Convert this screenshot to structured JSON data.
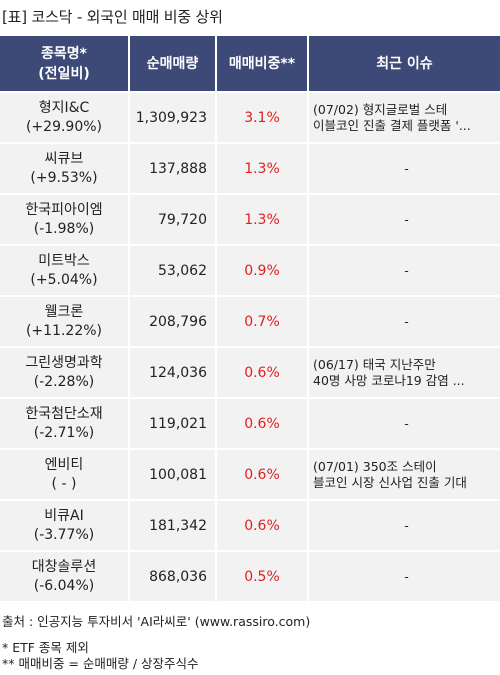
{
  "title": "[표] 코스닥 - 외국인 매매 비중 상위",
  "headers": {
    "name_line1": "종목명*",
    "name_line2": "(전일비)",
    "net": "순매매량",
    "ratio": "매매비중**",
    "issue": "최근 이슈"
  },
  "rows": [
    {
      "name": "형지I&C",
      "change": "(+29.90%)",
      "net": "1,309,923",
      "ratio": "3.1%",
      "issue1": "(07/02) 형지글로벌 스테",
      "issue2": "이블코인 진출 결제 플랫폼 '..."
    },
    {
      "name": "씨큐브",
      "change": "(+9.53%)",
      "net": "137,888",
      "ratio": "1.3%",
      "issue1": "-",
      "issue2": ""
    },
    {
      "name": "한국피아이엠",
      "change": "(-1.98%)",
      "net": "79,720",
      "ratio": "1.3%",
      "issue1": "-",
      "issue2": ""
    },
    {
      "name": "미트박스",
      "change": "(+5.04%)",
      "net": "53,062",
      "ratio": "0.9%",
      "issue1": "-",
      "issue2": ""
    },
    {
      "name": "웰크론",
      "change": "(+11.22%)",
      "net": "208,796",
      "ratio": "0.7%",
      "issue1": "-",
      "issue2": ""
    },
    {
      "name": "그린생명과학",
      "change": "(-2.28%)",
      "net": "124,036",
      "ratio": "0.6%",
      "issue1": "(06/17) 태국 지난주만",
      "issue2": "40명 사망 코로나19 감염 ..."
    },
    {
      "name": "한국첨단소재",
      "change": "(-2.71%)",
      "net": "119,021",
      "ratio": "0.6%",
      "issue1": "-",
      "issue2": ""
    },
    {
      "name": "엔비티",
      "change": "( - )",
      "net": "100,081",
      "ratio": "0.6%",
      "issue1": "(07/01) 350조 스테이",
      "issue2": "블코인 시장 신사업 진출 기대"
    },
    {
      "name": "비큐AI",
      "change": "(-3.77%)",
      "net": "181,342",
      "ratio": "0.6%",
      "issue1": "-",
      "issue2": ""
    },
    {
      "name": "대창솔루션",
      "change": "(-6.04%)",
      "net": "868,036",
      "ratio": "0.5%",
      "issue1": "-",
      "issue2": ""
    }
  ],
  "footer": {
    "source": "출처 : 인공지능 투자비서 'AI라씨로' (www.rassiro.com)",
    "note1": "* ETF 종목 제외",
    "note2": "** 매매비중 = 순매매량 / 상장주식수"
  },
  "colors": {
    "header_bg": "#3d4977",
    "ratio_text": "#e02020",
    "row_bg": "#f2f2f2"
  }
}
